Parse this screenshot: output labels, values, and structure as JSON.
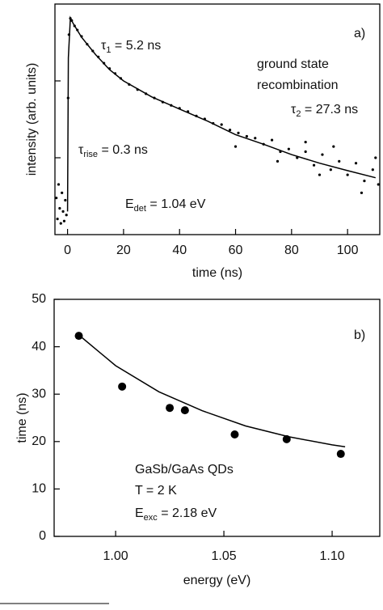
{
  "chart_data": [
    {
      "type": "scatter",
      "panel_label": "a)",
      "xlabel": "time (ns)",
      "ylabel": "intensity (arb. units)",
      "xlim": [
        -4.5,
        111.5
      ],
      "xticks": [
        0,
        20,
        40,
        60,
        80,
        100
      ],
      "yscale": "log",
      "ylim": [
        1,
        1000
      ],
      "yticks": [
        10,
        100
      ],
      "ytick_labels": false,
      "series": [
        {
          "style": "markers",
          "color": "#000000",
          "x": [
            -4,
            -3.6,
            -3.2,
            -2.8,
            -2.4,
            -2,
            -1.6,
            -1.2,
            -0.8,
            -0.4,
            0.2,
            0.5,
            1,
            1.5,
            2.5,
            3.5,
            5,
            7,
            9,
            11,
            13,
            15,
            17,
            19,
            22,
            25,
            28,
            31,
            34,
            37,
            40,
            43,
            46,
            49,
            52,
            55,
            58,
            61,
            64,
            67,
            70,
            73,
            76,
            79,
            82,
            85,
            88,
            91,
            94,
            97,
            100,
            103,
            106,
            109,
            111,
            60,
            75,
            90,
            105,
            85,
            95,
            110
          ],
          "values": [
            3,
            1.6,
            4.5,
            2.2,
            1.4,
            3.5,
            2,
            1.5,
            2.8,
            1.8,
            60,
            400,
            650,
            610,
            520,
            460,
            380,
            300,
            245,
            205,
            170,
            145,
            125,
            108,
            90,
            77,
            68,
            60,
            53,
            48,
            44,
            40,
            35,
            32,
            28,
            27,
            23,
            21,
            19,
            18,
            15,
            17,
            12,
            13,
            10,
            12,
            8,
            11,
            7,
            9,
            6,
            8.5,
            5,
            7,
            4.5,
            14,
            9,
            6,
            3.5,
            16,
            14,
            10
          ]
        },
        {
          "style": "line",
          "color": "#000000",
          "x": [
            0,
            0.3,
            1,
            2,
            5,
            10,
            15,
            20,
            30,
            40,
            50,
            60,
            70,
            80,
            90,
            100,
            110
          ],
          "values": [
            2,
            200,
            660,
            560,
            370,
            220,
            140,
            100,
            62,
            43,
            30,
            20,
            15,
            11,
            8.5,
            6.8,
            5.5
          ]
        }
      ],
      "annotations": [
        {
          "parts": [
            "τ",
            "1",
            " = 5.2 ns"
          ]
        },
        {
          "parts": [
            "ground state"
          ]
        },
        {
          "parts": [
            "recombination"
          ]
        },
        {
          "parts": [
            "τ",
            "2",
            " = 27.3 ns"
          ]
        },
        {
          "parts": [
            "τ",
            "rise",
            " = 0.3 ns"
          ]
        },
        {
          "parts": [
            "E",
            "det",
            " = 1.04 eV"
          ]
        }
      ]
    },
    {
      "type": "scatter",
      "panel_label": "b)",
      "xlabel": "energy (eV)",
      "ylabel": "time (ns)",
      "xlim": [
        0.9716,
        1.122
      ],
      "xticks": [
        {
          "value": 1.0,
          "label": "1.00"
        },
        {
          "value": 1.05,
          "label": "1.05"
        },
        {
          "value": 1.1,
          "label": "1.10"
        }
      ],
      "ylim": [
        0,
        50
      ],
      "yticks": [
        0,
        10,
        20,
        30,
        40,
        50
      ],
      "series": [
        {
          "style": "markers",
          "color": "#000000",
          "x": [
            0.983,
            1.003,
            1.025,
            1.032,
            1.055,
            1.079,
            1.104
          ],
          "values": [
            42.3,
            31.6,
            27.1,
            26.6,
            21.5,
            20.5,
            17.4
          ]
        },
        {
          "style": "line",
          "color": "#000000",
          "x": [
            0.983,
            1.0,
            1.02,
            1.04,
            1.06,
            1.08,
            1.1,
            1.106
          ],
          "values": [
            42.5,
            36,
            30.5,
            26.5,
            23.3,
            21,
            19.3,
            18.9
          ]
        }
      ],
      "annotations": [
        {
          "parts": [
            "GaSb/GaAs QDs"
          ]
        },
        {
          "parts": [
            "T = 2 K"
          ]
        },
        {
          "parts": [
            "E",
            "exc",
            " = 2.18 eV"
          ]
        }
      ]
    }
  ]
}
